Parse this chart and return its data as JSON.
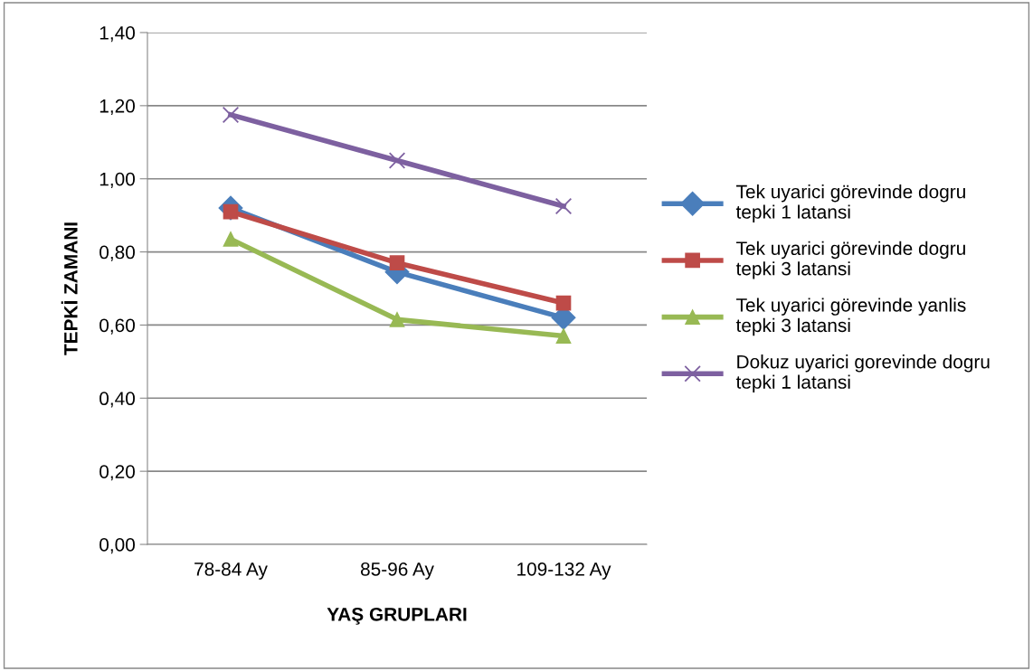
{
  "chart_data": {
    "type": "line",
    "xlabel": "YAŞ GRUPLARI",
    "ylabel": "TEPKİ ZAMANI",
    "categories": [
      "78-84 Ay",
      "85-96 Ay",
      "109-132 Ay"
    ],
    "series": [
      {
        "name": "Tek uyarici görevinde dogru tepki 1 latansi",
        "color": "#4a7ebb",
        "marker": "diamond",
        "values": [
          0.92,
          0.745,
          0.62
        ]
      },
      {
        "name": "Tek uyarici görevinde dogru tepki 3 latansi",
        "color": "#be4b48",
        "marker": "square",
        "values": [
          0.91,
          0.77,
          0.66
        ]
      },
      {
        "name": "Tek uyarici görevinde yanlis tepki 3 latansi",
        "color": "#98b954",
        "marker": "triangle",
        "values": [
          0.835,
          0.615,
          0.57
        ]
      },
      {
        "name": "Dokuz uyarici gorevinde dogru tepki 1 latansi",
        "color": "#7d60a0",
        "marker": "cross",
        "values": [
          1.175,
          1.05,
          0.925
        ]
      }
    ],
    "ylim": [
      0,
      1.4
    ],
    "yticks": [
      {
        "value": 0,
        "label": "0,00"
      },
      {
        "value": 0.2,
        "label": "0,20"
      },
      {
        "value": 0.4,
        "label": "0,40"
      },
      {
        "value": 0.6,
        "label": "0,60"
      },
      {
        "value": 0.8,
        "label": "0,80"
      },
      {
        "value": 1.0,
        "label": "1,00"
      },
      {
        "value": 1.2,
        "label": "1,20"
      },
      {
        "value": 1.4,
        "label": "1,40"
      }
    ],
    "grid": "y",
    "legend": "right",
    "line_style": "solid"
  }
}
